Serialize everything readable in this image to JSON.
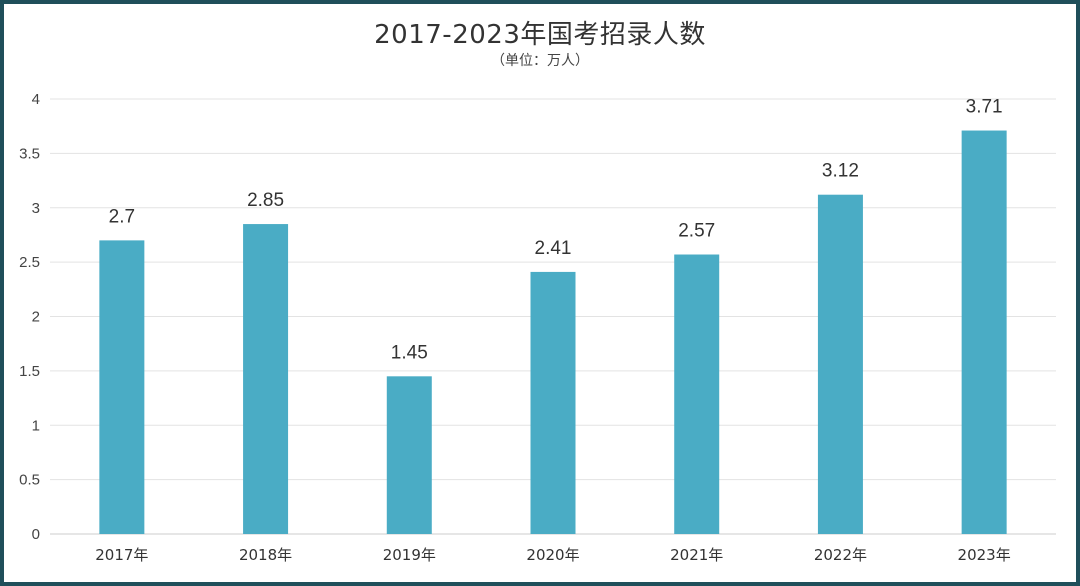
{
  "chart_data": {
    "type": "bar",
    "title": "2017-2023年国考招录人数",
    "subtitle": "（单位：万人）",
    "categories": [
      "2017年",
      "2018年",
      "2019年",
      "2020年",
      "2021年",
      "2022年",
      "2023年"
    ],
    "values": [
      2.7,
      2.85,
      1.45,
      2.41,
      2.57,
      3.12,
      3.71
    ],
    "value_labels": [
      "2.7",
      "2.85",
      "1.45",
      "2.41",
      "2.57",
      "3.12",
      "3.71"
    ],
    "y_ticks": [
      "0",
      "0.5",
      "1",
      "1.5",
      "2",
      "2.5",
      "3",
      "3.5",
      "4"
    ],
    "ylim": [
      0,
      4
    ],
    "grid": true,
    "legend": "none",
    "bar_color": "#4aacc5",
    "frame_color": "#1f4f5a"
  }
}
